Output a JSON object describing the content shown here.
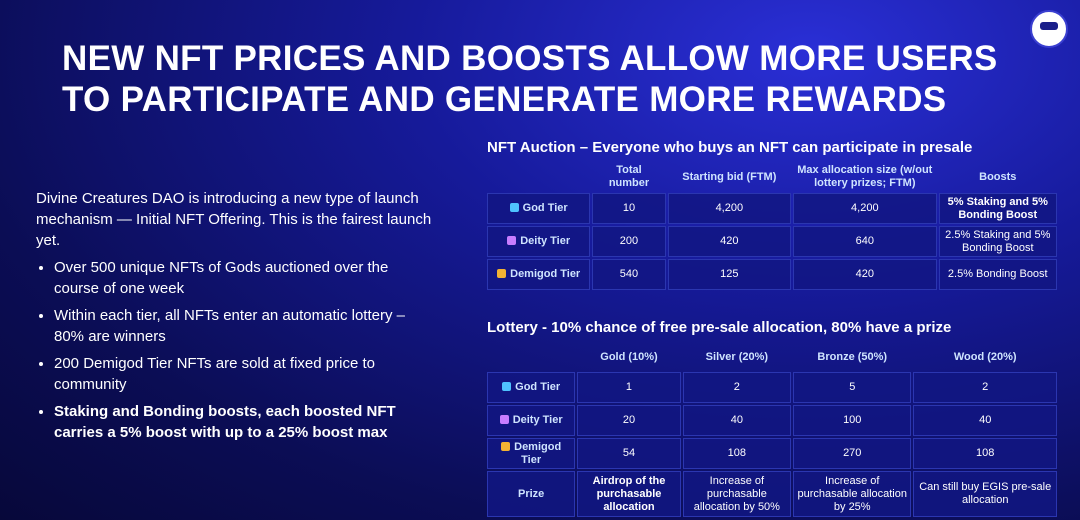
{
  "title": "NEW NFT PRICES AND BOOSTS ALLOW MORE USERS TO PARTICIPATE AND GENERATE MORE REWARDS",
  "intro": "Divine Creatures DAO is introducing a new type of launch mechanism — Initial NFT Offering. This is the fairest launch yet.",
  "bullets": [
    "Over 500 unique NFTs of Gods auctioned over the course of one week",
    "Within each tier, all NFTs enter an automatic lottery – 80% are winners",
    "200 Demigod Tier NFTs are sold at fixed price to community",
    "Staking and Bonding boosts, each boosted NFT carries a 5% boost with up to a 25% boost max"
  ],
  "auction": {
    "title": "NFT Auction – Everyone who buys an NFT can participate in presale",
    "columns": [
      "Total number",
      "Starting bid (FTM)",
      "Max allocation size (w/out lottery prizes; FTM)",
      "Boosts"
    ],
    "rows": [
      {
        "label": "God Tier",
        "cells": [
          "10",
          "4,200",
          "4,200",
          "5% Staking and 5% Bonding Boost"
        ]
      },
      {
        "label": "Deity Tier",
        "cells": [
          "200",
          "420",
          "640",
          "2.5% Staking and 5% Bonding Boost"
        ]
      },
      {
        "label": "Demigod Tier",
        "cells": [
          "540",
          "125",
          "420",
          "2.5% Bonding Boost"
        ]
      }
    ]
  },
  "lottery": {
    "title": "Lottery - 10% chance of free pre-sale allocation, 80% have a prize",
    "columns": [
      "Gold (10%)",
      "Silver (20%)",
      "Bronze (50%)",
      "Wood (20%)"
    ],
    "rows": [
      {
        "label": "God Tier",
        "cells": [
          "1",
          "2",
          "5",
          "2"
        ]
      },
      {
        "label": "Deity Tier",
        "cells": [
          "20",
          "40",
          "100",
          "40"
        ]
      },
      {
        "label": "Demigod Tier",
        "cells": [
          "54",
          "108",
          "270",
          "108"
        ]
      },
      {
        "label": "Prize",
        "cells": [
          "Airdrop of the purchasable allocation",
          "Increase of purchasable allocation by 50%",
          "Increase of purchasable allocation by 25%",
          "Can still buy EGIS pre-sale allocation"
        ]
      }
    ]
  }
}
